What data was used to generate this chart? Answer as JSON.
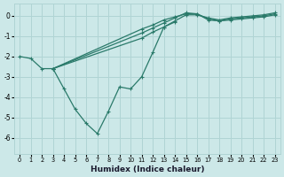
{
  "xlabel": "Humidex (Indice chaleur)",
  "xlim": [
    -0.5,
    23.5
  ],
  "ylim": [
    -6.8,
    0.6
  ],
  "yticks": [
    0,
    -1,
    -2,
    -3,
    -4,
    -5,
    -6
  ],
  "xticks": [
    0,
    1,
    2,
    3,
    4,
    5,
    6,
    7,
    8,
    9,
    10,
    11,
    12,
    13,
    14,
    15,
    16,
    17,
    18,
    19,
    20,
    21,
    22,
    23
  ],
  "bg_color": "#cce8e8",
  "grid_color": "#b0d4d4",
  "line_color": "#2a7a6a",
  "series": [
    {
      "x": [
        0,
        1,
        2,
        3
      ],
      "y": [
        -2.0,
        -2.1,
        -2.6,
        -2.6
      ]
    },
    {
      "x": [
        3,
        4,
        5,
        6,
        7,
        8,
        9,
        10,
        11,
        12,
        13,
        14
      ],
      "y": [
        -2.6,
        -3.6,
        -4.6,
        -5.3,
        -5.8,
        -4.7,
        -3.5,
        -3.6,
        -3.0,
        -1.8,
        -0.55,
        -0.3
      ]
    },
    {
      "x": [
        3,
        11,
        12,
        13,
        14,
        15,
        16,
        17,
        18,
        19,
        20,
        21,
        22,
        23
      ],
      "y": [
        -2.6,
        -0.65,
        -0.45,
        -0.2,
        -0.05,
        0.1,
        0.1,
        -0.2,
        -0.25,
        -0.2,
        -0.15,
        -0.1,
        -0.05,
        0.05
      ]
    },
    {
      "x": [
        3,
        11,
        12,
        13,
        14,
        15,
        16,
        17,
        18,
        19,
        20,
        21,
        22,
        23
      ],
      "y": [
        -2.6,
        -0.85,
        -0.6,
        -0.35,
        -0.1,
        0.15,
        0.1,
        -0.15,
        -0.25,
        -0.15,
        -0.1,
        -0.05,
        0.0,
        0.1
      ]
    },
    {
      "x": [
        3,
        11,
        12,
        13,
        14,
        15,
        16,
        17,
        18,
        19,
        20,
        21,
        22,
        23
      ],
      "y": [
        -2.6,
        -1.1,
        -0.8,
        -0.55,
        -0.25,
        0.05,
        0.05,
        -0.1,
        -0.2,
        -0.1,
        -0.05,
        0.0,
        0.05,
        0.15
      ]
    }
  ]
}
